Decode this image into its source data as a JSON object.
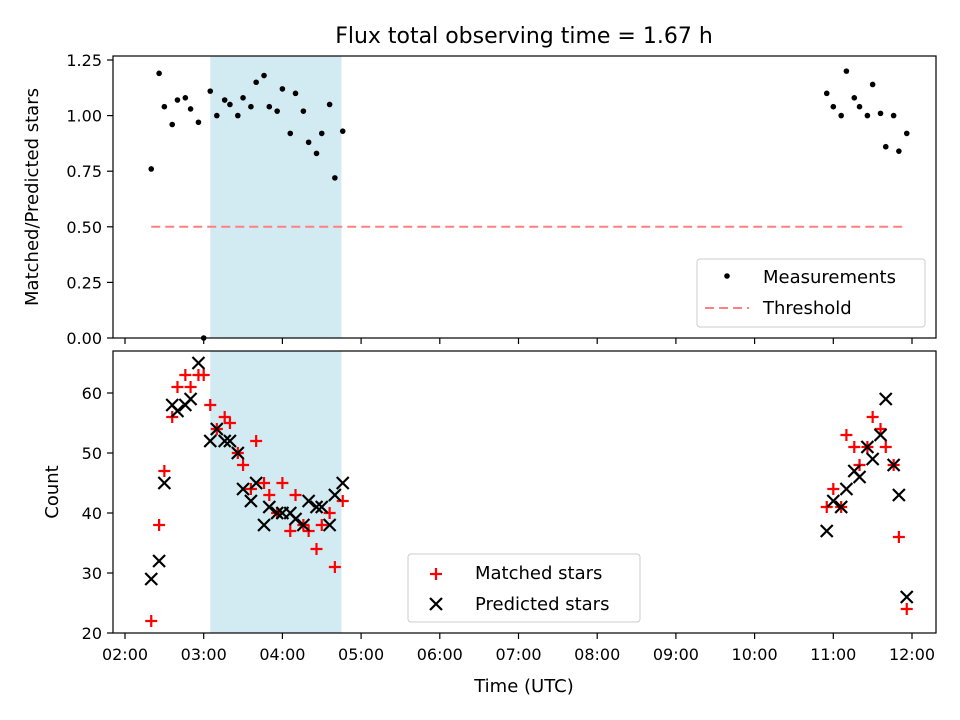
{
  "chart_data": [
    {
      "type": "scatter",
      "title": "Flux total observing time = 1.67 h",
      "xlabel": "",
      "ylabel": "Matched/Predicted stars",
      "xlim": [
        "02:00",
        "12:00"
      ],
      "ylim": [
        0,
        1.25
      ],
      "yticks": [
        "0.00",
        "0.25",
        "0.50",
        "0.75",
        "1.00",
        "1.25"
      ],
      "highlight_span": [
        "03:05",
        "04:45"
      ],
      "highlight_color": "#add8e6",
      "legend_position": "lower-right",
      "series": [
        {
          "name": "Measurements",
          "marker": "dot",
          "color": "#000000",
          "points": [
            [
              "02:20",
              0.76
            ],
            [
              "02:26",
              1.19
            ],
            [
              "02:30",
              1.04
            ],
            [
              "02:36",
              0.96
            ],
            [
              "02:40",
              1.07
            ],
            [
              "02:46",
              1.08
            ],
            [
              "02:50",
              1.03
            ],
            [
              "02:56",
              0.97
            ],
            [
              "03:00",
              0.0
            ],
            [
              "03:05",
              1.11
            ],
            [
              "03:10",
              1.0
            ],
            [
              "03:16",
              1.07
            ],
            [
              "03:20",
              1.05
            ],
            [
              "03:26",
              1.0
            ],
            [
              "03:30",
              1.08
            ],
            [
              "03:36",
              1.04
            ],
            [
              "03:40",
              1.15
            ],
            [
              "03:46",
              1.18
            ],
            [
              "03:50",
              1.04
            ],
            [
              "03:56",
              1.02
            ],
            [
              "04:00",
              1.12
            ],
            [
              "04:06",
              0.92
            ],
            [
              "04:10",
              1.1
            ],
            [
              "04:16",
              1.02
            ],
            [
              "04:20",
              0.88
            ],
            [
              "04:26",
              0.83
            ],
            [
              "04:30",
              0.92
            ],
            [
              "04:36",
              1.05
            ],
            [
              "04:40",
              0.72
            ],
            [
              "04:46",
              0.93
            ],
            [
              "10:55",
              1.1
            ],
            [
              "11:00",
              1.04
            ],
            [
              "11:06",
              1.0
            ],
            [
              "11:10",
              1.2
            ],
            [
              "11:16",
              1.08
            ],
            [
              "11:20",
              1.04
            ],
            [
              "11:26",
              1.0
            ],
            [
              "11:30",
              1.14
            ],
            [
              "11:36",
              1.01
            ],
            [
              "11:40",
              0.86
            ],
            [
              "11:46",
              1.0
            ],
            [
              "11:50",
              0.84
            ],
            [
              "11:56",
              0.92
            ]
          ]
        },
        {
          "name": "Threshold",
          "marker": "dashed-line",
          "color": "#ff8080",
          "points": [
            [
              "02:20",
              0.5
            ],
            [
              "11:56",
              0.5
            ]
          ]
        }
      ]
    },
    {
      "type": "scatter",
      "title": "",
      "xlabel": "Time (UTC)",
      "ylabel": "Count",
      "xlim": [
        "02:00",
        "12:00"
      ],
      "ylim": [
        20,
        67
      ],
      "yticks": [
        "20",
        "30",
        "40",
        "50",
        "60"
      ],
      "xticks": [
        "02:00",
        "03:00",
        "04:00",
        "05:00",
        "06:00",
        "07:00",
        "08:00",
        "09:00",
        "10:00",
        "11:00",
        "12:00"
      ],
      "highlight_span": [
        "03:05",
        "04:45"
      ],
      "highlight_color": "#add8e6",
      "legend_position": "lower-center",
      "series": [
        {
          "name": "Matched stars",
          "marker": "plus",
          "color": "#ff0000",
          "points": [
            [
              "02:20",
              22
            ],
            [
              "02:26",
              38
            ],
            [
              "02:30",
              47
            ],
            [
              "02:36",
              56
            ],
            [
              "02:40",
              61
            ],
            [
              "02:46",
              63
            ],
            [
              "02:50",
              61
            ],
            [
              "02:56",
              63
            ],
            [
              "03:00",
              63
            ],
            [
              "03:05",
              58
            ],
            [
              "03:10",
              54
            ],
            [
              "03:16",
              56
            ],
            [
              "03:20",
              55
            ],
            [
              "03:26",
              50
            ],
            [
              "03:30",
              48
            ],
            [
              "03:36",
              44
            ],
            [
              "03:40",
              52
            ],
            [
              "03:46",
              45
            ],
            [
              "03:50",
              43
            ],
            [
              "03:56",
              40
            ],
            [
              "04:00",
              45
            ],
            [
              "04:06",
              37
            ],
            [
              "04:10",
              43
            ],
            [
              "04:16",
              38
            ],
            [
              "04:20",
              37
            ],
            [
              "04:26",
              34
            ],
            [
              "04:30",
              38
            ],
            [
              "04:36",
              40
            ],
            [
              "04:40",
              31
            ],
            [
              "04:46",
              42
            ],
            [
              "10:55",
              41
            ],
            [
              "11:00",
              44
            ],
            [
              "11:06",
              41
            ],
            [
              "11:10",
              53
            ],
            [
              "11:16",
              51
            ],
            [
              "11:20",
              48
            ],
            [
              "11:26",
              51
            ],
            [
              "11:30",
              56
            ],
            [
              "11:36",
              54
            ],
            [
              "11:40",
              51
            ],
            [
              "11:46",
              48
            ],
            [
              "11:50",
              36
            ],
            [
              "11:56",
              24
            ]
          ]
        },
        {
          "name": "Predicted stars",
          "marker": "x",
          "color": "#000000",
          "points": [
            [
              "02:20",
              29
            ],
            [
              "02:26",
              32
            ],
            [
              "02:30",
              45
            ],
            [
              "02:36",
              58
            ],
            [
              "02:40",
              57
            ],
            [
              "02:46",
              58
            ],
            [
              "02:50",
              59
            ],
            [
              "02:56",
              65
            ],
            [
              "03:05",
              52
            ],
            [
              "03:10",
              54
            ],
            [
              "03:16",
              52
            ],
            [
              "03:20",
              52
            ],
            [
              "03:26",
              50
            ],
            [
              "03:30",
              44
            ],
            [
              "03:36",
              42
            ],
            [
              "03:40",
              45
            ],
            [
              "03:46",
              38
            ],
            [
              "03:50",
              41
            ],
            [
              "03:56",
              40
            ],
            [
              "04:00",
              40
            ],
            [
              "04:06",
              40
            ],
            [
              "04:10",
              39
            ],
            [
              "04:16",
              38
            ],
            [
              "04:20",
              42
            ],
            [
              "04:26",
              41
            ],
            [
              "04:30",
              41
            ],
            [
              "04:36",
              38
            ],
            [
              "04:40",
              43
            ],
            [
              "04:46",
              45
            ],
            [
              "10:55",
              37
            ],
            [
              "11:00",
              42
            ],
            [
              "11:06",
              41
            ],
            [
              "11:10",
              44
            ],
            [
              "11:16",
              47
            ],
            [
              "11:20",
              46
            ],
            [
              "11:26",
              51
            ],
            [
              "11:30",
              49
            ],
            [
              "11:36",
              53
            ],
            [
              "11:40",
              59
            ],
            [
              "11:46",
              48
            ],
            [
              "11:50",
              43
            ],
            [
              "11:56",
              26
            ]
          ]
        }
      ]
    }
  ]
}
